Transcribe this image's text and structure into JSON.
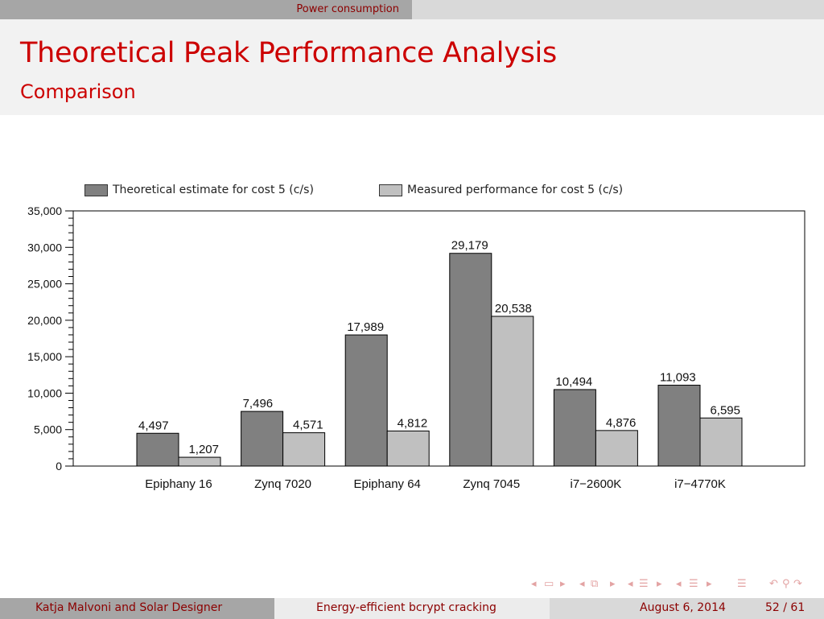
{
  "header": {
    "section": "Power consumption",
    "title": "Theoretical Peak Performance Analysis",
    "subtitle": "Comparison"
  },
  "colors": {
    "accent": "#cc0000",
    "theoretical": "#808080",
    "measured": "#c0c0c0"
  },
  "chart_data": {
    "type": "bar",
    "title": "",
    "xlabel": "",
    "ylabel": "",
    "ylim": [
      0,
      35000
    ],
    "yticks": [
      0,
      5000,
      10000,
      15000,
      20000,
      25000,
      30000,
      35000
    ],
    "ytick_labels": [
      "0",
      "5,000",
      "10,000",
      "15,000",
      "20,000",
      "25,000",
      "30,000",
      "35,000"
    ],
    "grid": false,
    "legend_position": "top",
    "categories": [
      "Epiphany 16",
      "Zynq 7020",
      "Epiphany 64",
      "Zynq 7045",
      "i7−2600K",
      "i7−4770K"
    ],
    "series": [
      {
        "name": "Theoretical estimate for cost 5 (c/s)",
        "values": [
          4497,
          7496,
          17989,
          29179,
          10494,
          11093
        ],
        "labels": [
          "4,497",
          "7,496",
          "17,989",
          "29,179",
          "10,494",
          "11,093"
        ]
      },
      {
        "name": "Measured performance for cost 5 (c/s)",
        "values": [
          1207,
          4571,
          4812,
          20538,
          4876,
          6595
        ],
        "labels": [
          "1,207",
          "4,571",
          "4,812",
          "20,538",
          "4,876",
          "6,595"
        ]
      }
    ]
  },
  "navigation": {
    "icons": [
      "frame-prev-icon",
      "frame-icon",
      "frame-next-icon",
      "subsection-prev-icon",
      "subsection-icon",
      "subsection-next-icon",
      "section-prev-icon",
      "section-icon",
      "section-next-icon",
      "subsection-prev2-icon",
      "subsection2-icon",
      "subsection-next2-icon",
      "toc-icon",
      "undo-icon",
      "search-icon",
      "redo-icon"
    ]
  },
  "footer": {
    "authors": "Katja Malvoni and Solar Designer",
    "talk_title": "Energy-efficient bcrypt cracking",
    "date": "August 6, 2014",
    "page": "52 / 61"
  }
}
